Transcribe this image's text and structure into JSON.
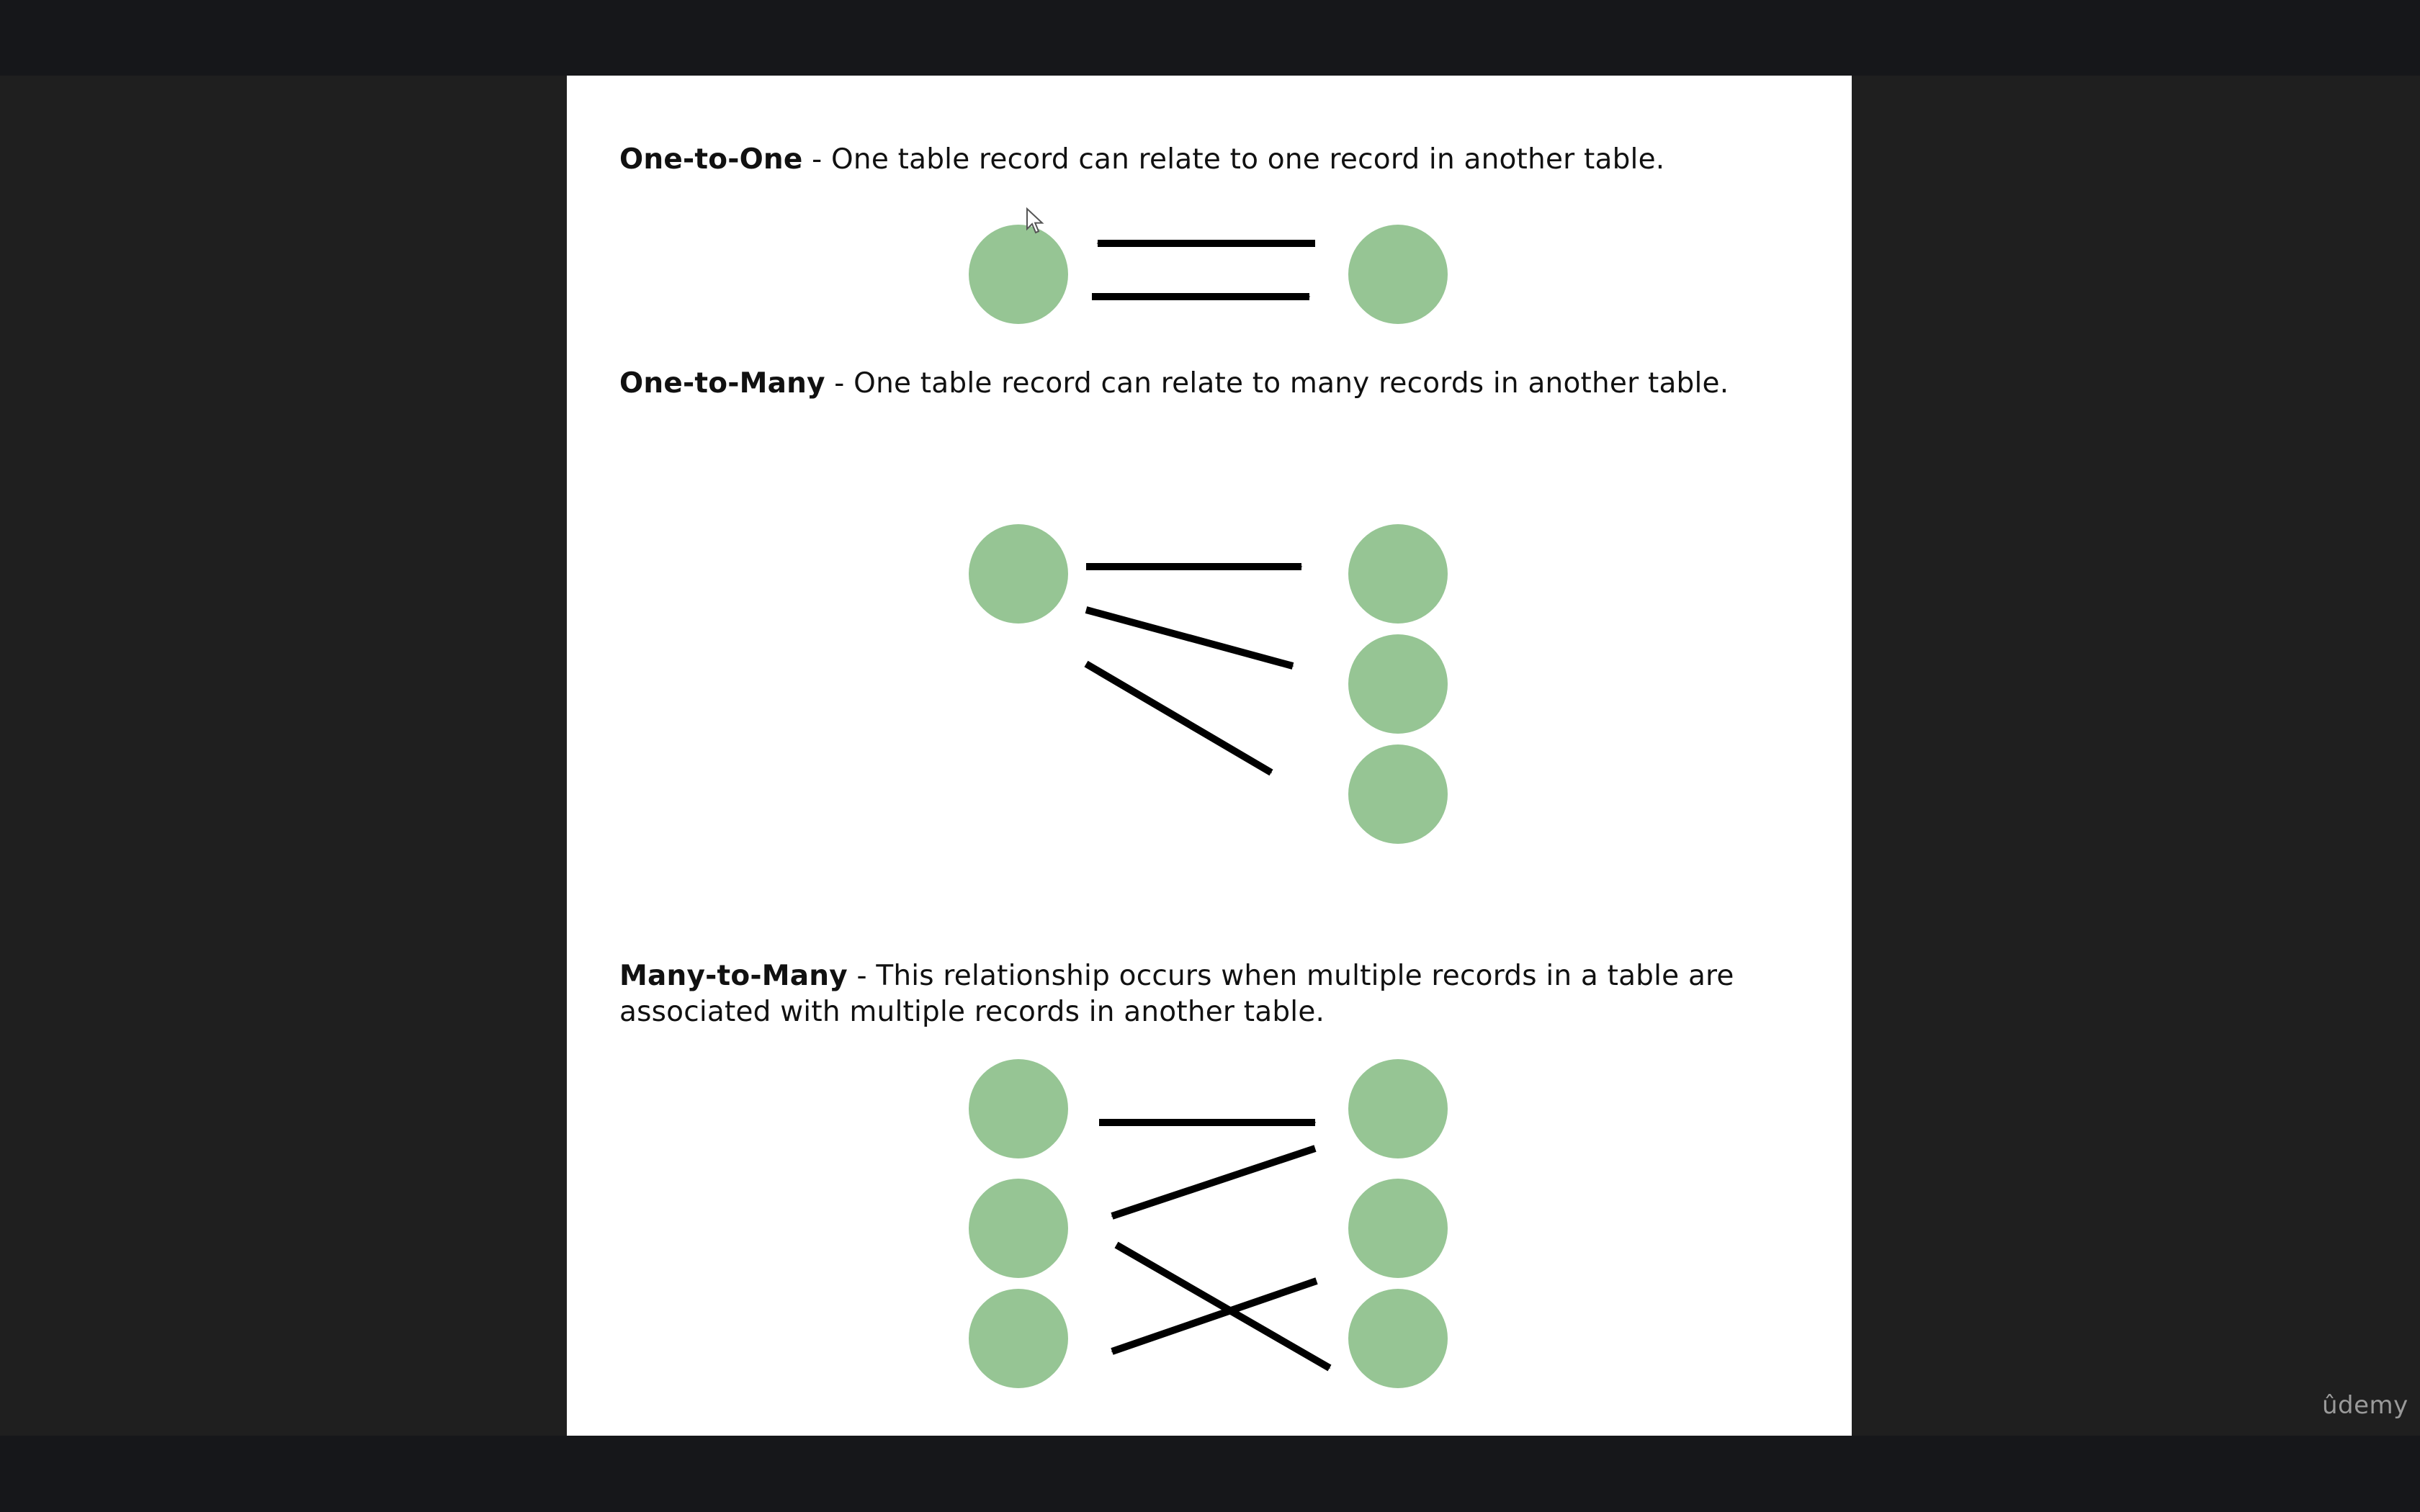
{
  "slide": {
    "sections": [
      {
        "id": "one-to-one",
        "term": "One-to-One",
        "separator": " - ",
        "definition": "One table record can relate to one record in another table."
      },
      {
        "id": "one-to-many",
        "term": "One-to-Many",
        "separator": " - ",
        "definition": "One table record can relate to many records in another table."
      },
      {
        "id": "many-to-many",
        "term": "Many-to-Many",
        "separator": " - ",
        "definition_line1": "This relationship occurs when multiple records in a table are",
        "definition_line2": "associated with multiple records in another table."
      }
    ]
  },
  "colors": {
    "node": "#96c594",
    "arrow": "#000000",
    "slide_background": "#ffffff",
    "frame_background": "#1f1f1f"
  },
  "watermark": {
    "text": "ûdemy"
  },
  "icons": {
    "cursor": "mouse-pointer-icon"
  }
}
